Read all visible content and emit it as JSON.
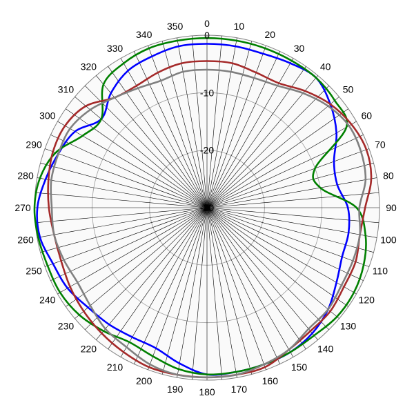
{
  "chart_data": {
    "type": "polar-line",
    "title": "",
    "angular_axis": {
      "unit": "degrees",
      "zero_direction": "top",
      "rotation": "clockwise",
      "tick_labels": [
        "0",
        "10",
        "20",
        "30",
        "40",
        "50",
        "60",
        "70",
        "80",
        "90",
        "100",
        "110",
        "120",
        "130",
        "140",
        "150",
        "160",
        "170",
        "180",
        "190",
        "200",
        "210",
        "220",
        "230",
        "240",
        "250",
        "260",
        "270",
        "280",
        "290",
        "300",
        "310",
        "320",
        "330",
        "340",
        "350"
      ]
    },
    "radial_axis": {
      "range": [
        -30,
        0
      ],
      "tick_values": [
        0,
        -10,
        -20,
        -30
      ],
      "tick_labels": [
        "0",
        "-10",
        "-20",
        "-30"
      ],
      "grid": true
    },
    "legend": "none",
    "series": [
      {
        "color": "#0000ff",
        "angles": [
          0,
          10,
          20,
          30,
          40,
          50,
          60,
          70,
          80,
          90,
          100,
          110,
          120,
          130,
          140,
          150,
          160,
          170,
          180,
          190,
          200,
          210,
          220,
          230,
          240,
          250,
          260,
          270,
          280,
          290,
          300,
          310,
          320,
          330,
          340,
          350
        ],
        "values": [
          -1.5,
          -1.5,
          -1.5,
          -1.0,
          -0.5,
          -2.0,
          -4.0,
          -6.5,
          -7.0,
          -5.5,
          -5.0,
          -5.0,
          -4.0,
          -2.5,
          -1.5,
          -1.0,
          -1.0,
          -1.0,
          -1.0,
          -2.5,
          -4.0,
          -4.0,
          -3.5,
          -3.0,
          -2.0,
          -1.5,
          -0.5,
          -0.5,
          -1.5,
          -2.5,
          -3.5,
          -6.0,
          -4.0,
          -2.5,
          -2.0,
          -1.5
        ]
      },
      {
        "color": "#008000",
        "angles": [
          0,
          10,
          20,
          30,
          40,
          50,
          60,
          70,
          80,
          90,
          100,
          110,
          120,
          130,
          140,
          150,
          160,
          170,
          180,
          190,
          200,
          210,
          220,
          230,
          240,
          250,
          260,
          270,
          280,
          290,
          300,
          310,
          320,
          330,
          340,
          350
        ],
        "values": [
          -0.5,
          -0.5,
          -0.5,
          -0.5,
          -0.5,
          -1.0,
          -2.0,
          -10.0,
          -10.0,
          -4.0,
          -2.0,
          -1.0,
          -0.5,
          -0.5,
          -1.0,
          -1.0,
          -1.0,
          -1.0,
          -1.0,
          -1.5,
          -2.5,
          -3.0,
          -2.0,
          -1.0,
          -0.5,
          -0.5,
          -0.2,
          0.0,
          -0.5,
          -2.0,
          -5.0,
          -6.0,
          -2.0,
          -1.0,
          -0.5,
          -0.5
        ]
      },
      {
        "color": "#a52a2a",
        "angles": [
          0,
          10,
          20,
          30,
          40,
          50,
          60,
          70,
          80,
          90,
          100,
          110,
          120,
          130,
          140,
          150,
          160,
          170,
          180,
          190,
          200,
          210,
          220,
          230,
          240,
          250,
          260,
          270,
          280,
          290,
          300,
          310,
          320,
          330,
          340,
          350
        ],
        "values": [
          -4.5,
          -4.5,
          -5.0,
          -5.0,
          -3.5,
          -2.0,
          -1.0,
          -0.5,
          -1.0,
          -2.5,
          -3.0,
          -2.5,
          -2.5,
          -2.0,
          -2.0,
          -1.5,
          -0.5,
          -0.5,
          -0.5,
          -0.5,
          -0.5,
          -1.0,
          -1.5,
          -2.0,
          -2.5,
          -3.0,
          -3.0,
          -2.5,
          -2.0,
          -1.5,
          -1.5,
          -2.5,
          -5.0,
          -5.5,
          -5.0,
          -4.5
        ]
      },
      {
        "color": "#808080",
        "angles": [
          0,
          10,
          20,
          30,
          40,
          50,
          60,
          70,
          80,
          90,
          100,
          110,
          120,
          130,
          140,
          150,
          160,
          170,
          180,
          190,
          200,
          210,
          220,
          230,
          240,
          250,
          260,
          270,
          280,
          290,
          300,
          310,
          320,
          330,
          340,
          350
        ],
        "values": [
          -6.0,
          -6.0,
          -6.0,
          -5.5,
          -4.0,
          -2.5,
          -1.5,
          -1.5,
          -2.0,
          -3.5,
          -3.0,
          -3.0,
          -3.0,
          -2.5,
          -2.5,
          -1.5,
          -1.0,
          -0.5,
          -0.5,
          -0.5,
          -1.0,
          -2.0,
          -2.5,
          -3.5,
          -4.0,
          -3.5,
          -3.0,
          -3.0,
          -2.5,
          -2.5,
          -2.5,
          -3.5,
          -5.0,
          -6.0,
          -6.5,
          -6.0
        ]
      }
    ]
  }
}
